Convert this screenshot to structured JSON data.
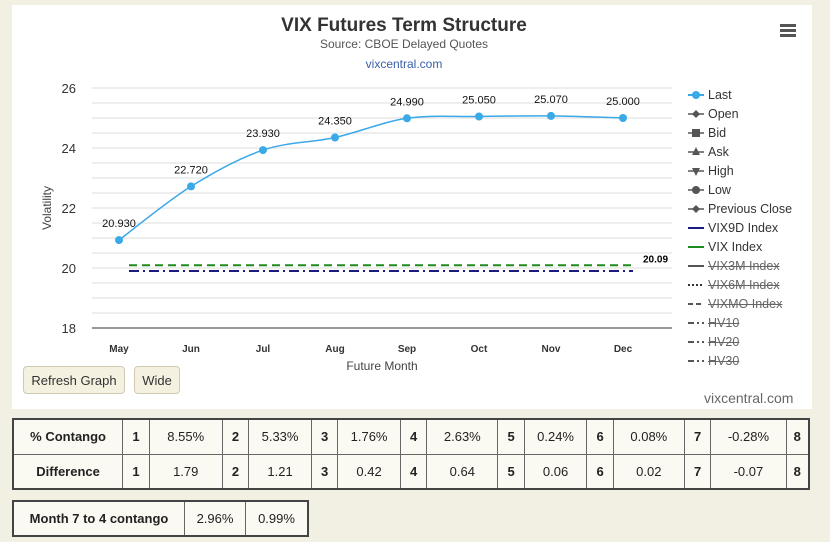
{
  "header": {
    "title": "VIX Futures Term Structure",
    "subtitle": "Source: CBOE Delayed Quotes",
    "site": "vixcentral.com"
  },
  "buttons": {
    "refresh": "Refresh Graph",
    "wide": "Wide"
  },
  "watermark": "vixcentral.com",
  "colors": {
    "last": "#3aa9e8",
    "vix": "#1e8a1e",
    "vix9d": "#1a1a80",
    "grid": "#dddddd"
  },
  "legend": [
    {
      "label": "Last",
      "symbol": "circle-line",
      "active": true
    },
    {
      "label": "Open",
      "symbol": "diamond",
      "active": true
    },
    {
      "label": "Bid",
      "symbol": "square",
      "active": true
    },
    {
      "label": "Ask",
      "symbol": "triangle-up",
      "active": true
    },
    {
      "label": "High",
      "symbol": "triangle-down",
      "active": true
    },
    {
      "label": "Low",
      "symbol": "circle",
      "active": true
    },
    {
      "label": "Previous Close",
      "symbol": "diamond",
      "active": true
    },
    {
      "label": "VIX9D Index",
      "symbol": "solid-navy",
      "active": true
    },
    {
      "label": "VIX Index",
      "symbol": "solid-green",
      "active": true
    },
    {
      "label": "VIX3M Index",
      "symbol": "solid-gray",
      "active": false
    },
    {
      "label": "VIX6M Index",
      "symbol": "dotted",
      "active": false
    },
    {
      "label": "VIXMO Index",
      "symbol": "dashed",
      "active": false
    },
    {
      "label": "HV10",
      "symbol": "dash-dot",
      "active": false
    },
    {
      "label": "HV20",
      "symbol": "dash-dot",
      "active": false
    },
    {
      "label": "HV30",
      "symbol": "dash-dot",
      "active": false
    }
  ],
  "chart_data": {
    "type": "line",
    "title": "VIX Futures Term Structure",
    "xlabel": "Future Month",
    "ylabel": "Volatility",
    "categories": [
      "May",
      "Jun",
      "Jul",
      "Aug",
      "Sep",
      "Oct",
      "Nov",
      "Dec"
    ],
    "ylim": [
      18,
      26
    ],
    "yticks": [
      18,
      20,
      22,
      24,
      26
    ],
    "grid": true,
    "legend_position": "right",
    "series": [
      {
        "name": "Last",
        "values": [
          20.93,
          22.72,
          23.93,
          24.35,
          24.99,
          25.05,
          25.07,
          25.0
        ],
        "labels": [
          "20.930",
          "22.720",
          "23.930",
          "24.350",
          "24.990",
          "25.050",
          "25.070",
          "25.000"
        ]
      },
      {
        "name": "VIX Index",
        "value": 20.09,
        "label": "20.09"
      },
      {
        "name": "VIX9D Index",
        "value": 19.9
      }
    ]
  },
  "contango_table": {
    "rows": [
      {
        "label": "% Contango",
        "cells": [
          [
            "1",
            "8.55%"
          ],
          [
            "2",
            "5.33%"
          ],
          [
            "3",
            "1.76%"
          ],
          [
            "4",
            "2.63%"
          ],
          [
            "5",
            "0.24%"
          ],
          [
            "6",
            "0.08%"
          ],
          [
            "7",
            "-0.28%"
          ]
        ],
        "tail": "8"
      },
      {
        "label": "Difference",
        "cells": [
          [
            "1",
            "1.79"
          ],
          [
            "2",
            "1.21"
          ],
          [
            "3",
            "0.42"
          ],
          [
            "4",
            "0.64"
          ],
          [
            "5",
            "0.06"
          ],
          [
            "6",
            "0.02"
          ],
          [
            "7",
            "-0.07"
          ]
        ],
        "tail": "8"
      }
    ]
  },
  "month7to4": {
    "label": "Month 7 to 4 contango",
    "value1": "2.96%",
    "value2": "0.99%"
  }
}
